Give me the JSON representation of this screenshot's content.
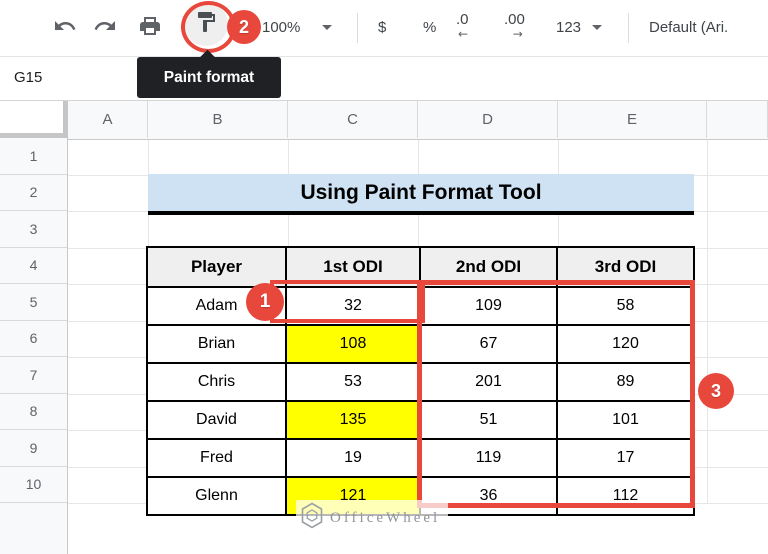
{
  "colors": {
    "accent_red": "#e8473c",
    "title_bg": "#cfe2f3",
    "highlight_yellow": "#ffff00",
    "tooltip_bg": "#202124"
  },
  "toolbar": {
    "zoom": "100%",
    "currency": "$",
    "percent": "%",
    "decrease_decimal": ".0",
    "decrease_decimal_arrow": "←",
    "increase_decimal": ".00",
    "increase_decimal_arrow": "→",
    "number_format": "123",
    "font_name": "Default (Ari."
  },
  "name_box": {
    "value": "G15"
  },
  "tooltip": {
    "label": "Paint format"
  },
  "annotations": {
    "step_1": "1",
    "step_2": "2",
    "step_3": "3"
  },
  "grid": {
    "column_headers": [
      "A",
      "B",
      "C",
      "D",
      "E"
    ],
    "row_headers": [
      "1",
      "2",
      "3",
      "4",
      "5",
      "6",
      "7",
      "8",
      "9",
      "10"
    ]
  },
  "sheet": {
    "title": "Using Paint Format Tool",
    "table": {
      "headers": [
        "Player",
        "1st ODI",
        "2nd ODI",
        "3rd ODI"
      ],
      "rows": [
        {
          "player": "Adam",
          "odi_1": "32",
          "odi_2": "109",
          "odi_3": "58",
          "odi_1_highlight": false
        },
        {
          "player": "Brian",
          "odi_1": "108",
          "odi_2": "67",
          "odi_3": "120",
          "odi_1_highlight": true
        },
        {
          "player": "Chris",
          "odi_1": "53",
          "odi_2": "201",
          "odi_3": "89",
          "odi_1_highlight": false
        },
        {
          "player": "David",
          "odi_1": "135",
          "odi_2": "51",
          "odi_3": "101",
          "odi_1_highlight": true
        },
        {
          "player": "Fred",
          "odi_1": "19",
          "odi_2": "119",
          "odi_3": "17",
          "odi_1_highlight": false
        },
        {
          "player": "Glenn",
          "odi_1": "121",
          "odi_2": "36",
          "odi_3": "112",
          "odi_1_highlight": true
        }
      ]
    }
  },
  "watermark": {
    "text": "OfficeWheel"
  }
}
